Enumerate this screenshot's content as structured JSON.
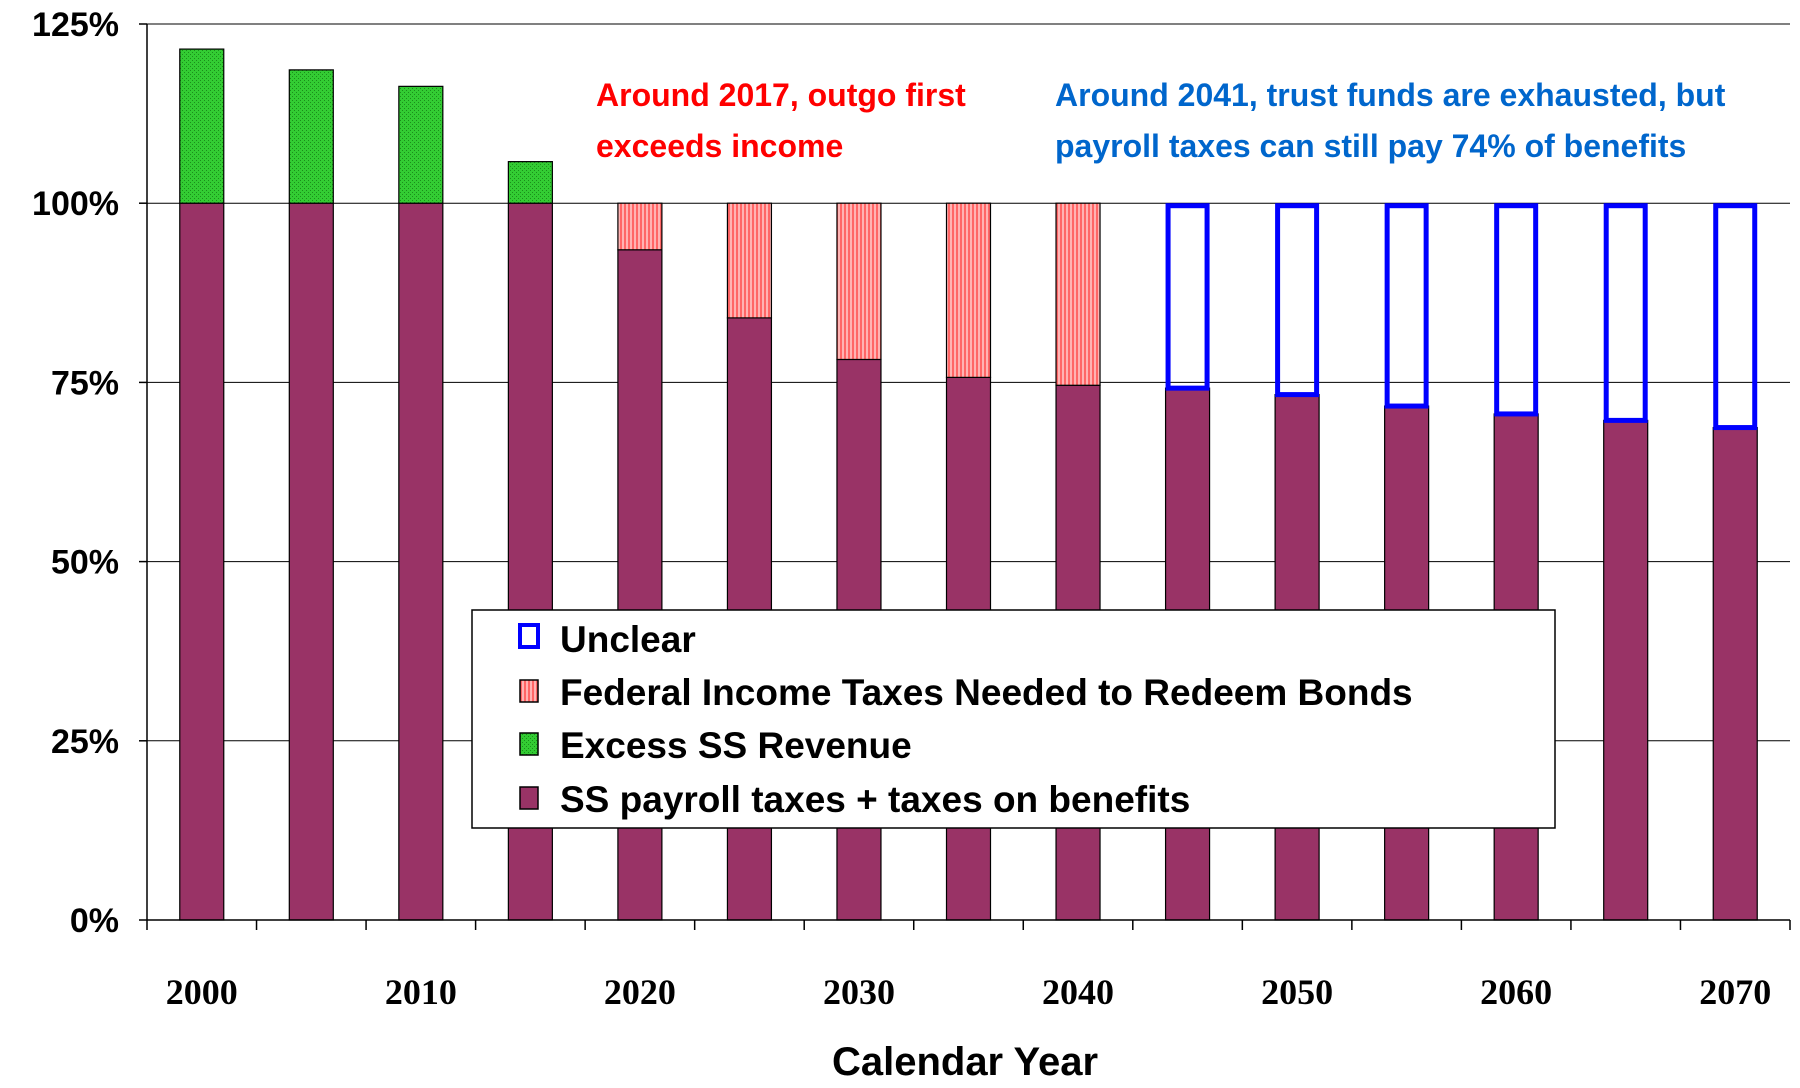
{
  "chart_data": {
    "type": "bar",
    "stacked": true,
    "categories": [
      "2000",
      "2005",
      "2010",
      "2015",
      "2020",
      "2025",
      "2030",
      "2035",
      "2040",
      "2045",
      "2050",
      "2055",
      "2060",
      "2065",
      "2070"
    ],
    "x_tick_labels": [
      "2000",
      "2010",
      "2020",
      "2030",
      "2040",
      "2050",
      "2060",
      "2070"
    ],
    "series": [
      {
        "name": "SS payroll taxes + taxes on benefits",
        "color": "#993366",
        "values": [
          100,
          100,
          100,
          100,
          93.5,
          84,
          78.2,
          75.7,
          74.6,
          74.2,
          73.3,
          71.7,
          70.6,
          69.7,
          68.7
        ]
      },
      {
        "name": "Excess SS Revenue",
        "color": "#33cc33",
        "values": [
          21.5,
          18.6,
          16.3,
          5.8,
          0,
          0,
          0,
          0,
          0,
          0,
          0,
          0,
          0,
          0,
          0
        ]
      },
      {
        "name": "Federal Income Taxes Needed to Redeem Bonds",
        "color": "#ff8080",
        "values": [
          0,
          0,
          0,
          0,
          6.5,
          16,
          21.8,
          24.3,
          25.4,
          0,
          0,
          0,
          0,
          0,
          0
        ]
      },
      {
        "name": "Unclear",
        "color": "#0000ff",
        "values": [
          0,
          0,
          0,
          0,
          0,
          0,
          0,
          0,
          0,
          25.8,
          26.7,
          28.3,
          29.4,
          30.3,
          31.3
        ]
      }
    ],
    "legend_order": [
      "Unclear",
      "Federal Income Taxes Needed to Redeem Bonds",
      "Excess SS Revenue",
      "SS payroll taxes + taxes on benefits"
    ],
    "legend_position": "lower-center",
    "ylim": [
      0,
      125
    ],
    "y_ticks": [
      "0%",
      "25%",
      "50%",
      "75%",
      "100%",
      "125%"
    ],
    "y_tick_values": [
      0,
      25,
      50,
      75,
      100,
      125
    ],
    "grid": "horizontal",
    "xlabel": "Calendar Year",
    "ylabel": "",
    "title": "",
    "annotations": [
      {
        "lines": [
          "Around 2017, outgo first",
          "exceeds income"
        ],
        "color": "#ff0000"
      },
      {
        "lines": [
          "Around 2041, trust funds are exhausted, but",
          "payroll taxes can still pay 74% of benefits"
        ],
        "color": "#0066cc"
      }
    ]
  }
}
